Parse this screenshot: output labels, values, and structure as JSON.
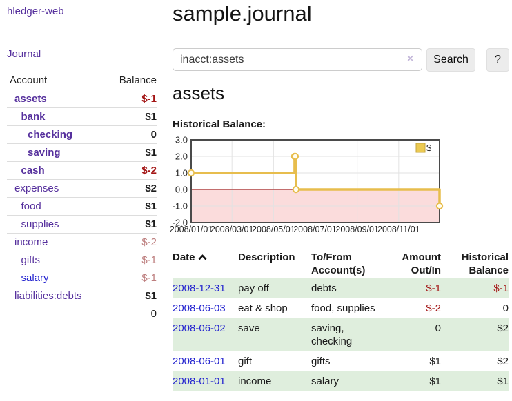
{
  "app": {
    "brand": "hledger-web",
    "nav_journal": "Journal"
  },
  "sidebar": {
    "col_account": "Account",
    "col_balance": "Balance",
    "accounts": [
      {
        "name": "assets",
        "depth": 1,
        "balance": "$-1",
        "name_bold": true,
        "bal_style": "neg-strong",
        "link": "purple"
      },
      {
        "name": "bank",
        "depth": 2,
        "balance": "$1",
        "name_bold": true,
        "bal_style": "",
        "link": "purple"
      },
      {
        "name": "checking",
        "depth": 3,
        "balance": "0",
        "name_bold": true,
        "bal_style": "",
        "link": "purple"
      },
      {
        "name": "saving",
        "depth": 3,
        "balance": "$1",
        "name_bold": true,
        "bal_style": "",
        "link": "purple"
      },
      {
        "name": "cash",
        "depth": 2,
        "balance": "$-2",
        "name_bold": true,
        "bal_style": "neg-strong",
        "link": "purple"
      },
      {
        "name": "expenses",
        "depth": 1,
        "balance": "$2",
        "name_bold": false,
        "bal_style": "",
        "link": "purple"
      },
      {
        "name": "food",
        "depth": 2,
        "balance": "$1",
        "name_bold": false,
        "bal_style": "",
        "link": "purple"
      },
      {
        "name": "supplies",
        "depth": 2,
        "balance": "$1",
        "name_bold": false,
        "bal_style": "",
        "link": "purple"
      },
      {
        "name": "income",
        "depth": 1,
        "balance": "$-2",
        "name_bold": false,
        "bal_style": "neg-muted",
        "link": "purple"
      },
      {
        "name": "gifts",
        "depth": 2,
        "balance": "$-1",
        "name_bold": false,
        "bal_style": "neg-muted",
        "link": "purple"
      },
      {
        "name": "salary",
        "depth": 2,
        "balance": "$-1",
        "name_bold": false,
        "bal_style": "neg-muted",
        "link": "blue"
      },
      {
        "name": "liabilities:debts",
        "depth": 1,
        "balance": "$1",
        "name_bold": false,
        "bal_style": "",
        "link": "purple"
      }
    ],
    "total": "0"
  },
  "header": {
    "title": "sample.journal"
  },
  "search": {
    "value": "inacct:assets",
    "clear_icon": "×",
    "button_label": "Search",
    "help_label": "?"
  },
  "account_page": {
    "heading": "assets",
    "chart_label": "Historical Balance:"
  },
  "chart_data": {
    "type": "line",
    "step": true,
    "title": "Historical Balance:",
    "series": [
      {
        "name": "$",
        "points": [
          [
            "2008-01-01",
            1
          ],
          [
            "2008-06-01",
            2
          ],
          [
            "2008-06-02",
            2
          ],
          [
            "2008-06-03",
            0
          ],
          [
            "2008-12-31",
            -1
          ]
        ]
      }
    ],
    "xlim": [
      "2008-01-01",
      "2008-12-31"
    ],
    "ylim": [
      -2,
      3
    ],
    "y_ticks": [
      "3.0",
      "2.0",
      "1.0",
      "0.0",
      "-1.0",
      "-2.0"
    ],
    "x_ticks": [
      "2008/01/01",
      "2008/03/01",
      "2008/05/01",
      "2008/07/01",
      "2008/09/01",
      "2008/11/01"
    ],
    "grid": true,
    "legend": [
      "$"
    ],
    "legend_position": "top-right",
    "series_color": "#e7bd4d",
    "marker_fill": "#fffdf2",
    "negative_region_color": "#fbdcdc",
    "zero_line_color": "#8b0000"
  },
  "register": {
    "headers": {
      "date": "Date",
      "description": "Description",
      "tofrom_line1": "To/From",
      "tofrom_line2": "Account(s)",
      "amount_line1": "Amount",
      "amount_line2": "Out/In",
      "balance_line1": "Historical",
      "balance_line2": "Balance"
    },
    "rows": [
      {
        "date": "2008-12-31",
        "description": "pay off",
        "accounts": "debts",
        "amount": "$-1",
        "amount_neg": true,
        "balance": "$-1",
        "balance_neg": true
      },
      {
        "date": "2008-06-03",
        "description": "eat & shop",
        "accounts": "food, supplies",
        "amount": "$-2",
        "amount_neg": true,
        "balance": "0",
        "balance_neg": false
      },
      {
        "date": "2008-06-02",
        "description": "save",
        "accounts": "saving, checking",
        "amount": "0",
        "amount_neg": false,
        "balance": "$2",
        "balance_neg": false
      },
      {
        "date": "2008-06-01",
        "description": "gift",
        "accounts": "gifts",
        "amount": "$1",
        "amount_neg": false,
        "balance": "$2",
        "balance_neg": false
      },
      {
        "date": "2008-01-01",
        "description": "income",
        "accounts": "salary",
        "amount": "$1",
        "amount_neg": false,
        "balance": "$1",
        "balance_neg": false
      }
    ]
  }
}
